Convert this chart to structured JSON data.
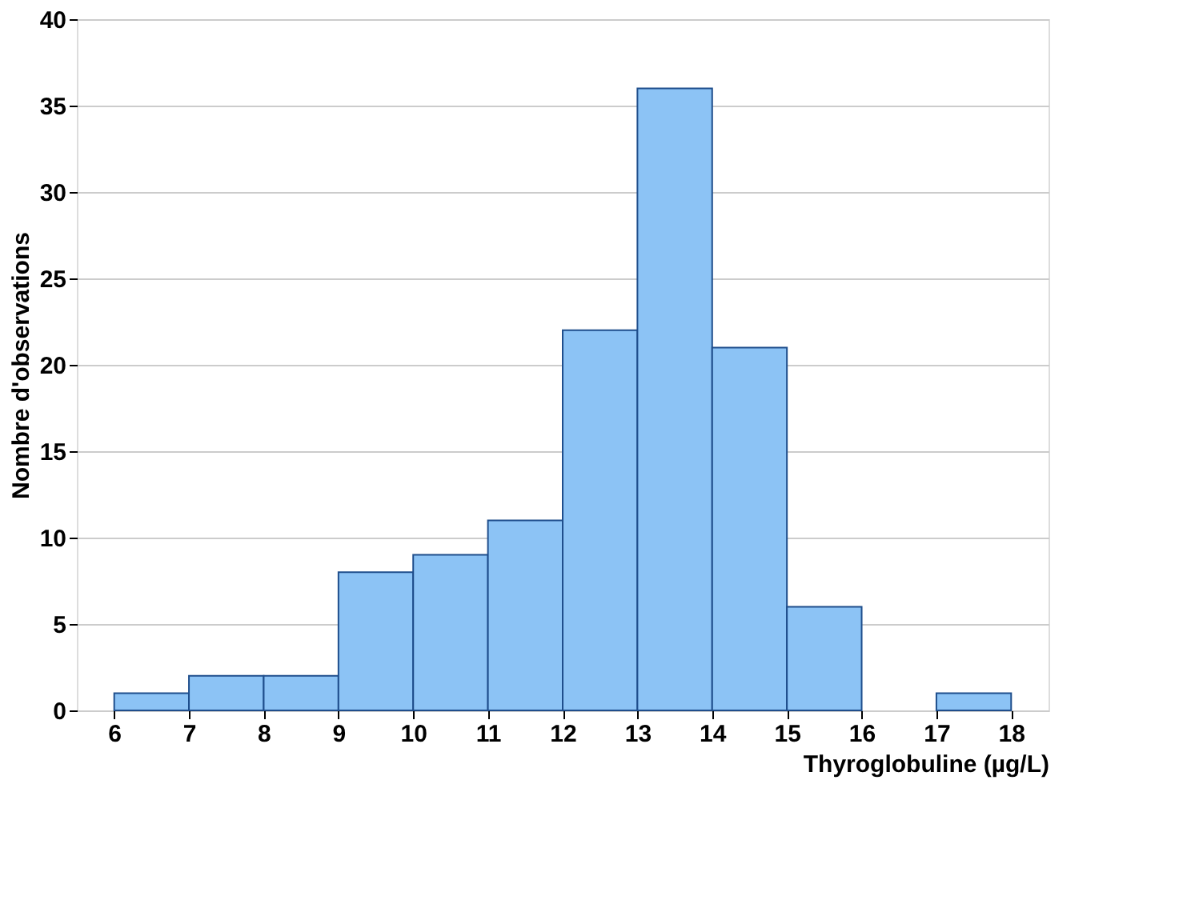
{
  "chart_data": {
    "type": "histogram",
    "xlabel": "Thyroglobuline (µg/L)",
    "ylabel": "Nombre d'observations",
    "bins": [
      6,
      7,
      8,
      9,
      10,
      11,
      12,
      13,
      14,
      15,
      16,
      17,
      18
    ],
    "values": [
      1,
      2,
      2,
      8,
      9,
      11,
      22,
      36,
      21,
      6,
      0,
      1
    ],
    "color": "#8cc3f5",
    "xlim": [
      5.5,
      18.5
    ],
    "xticks": [
      6,
      7,
      8,
      9,
      10,
      11,
      12,
      13,
      14,
      15,
      16,
      17,
      18
    ],
    "ylim": [
      0,
      40
    ],
    "yticks": [
      0,
      5,
      10,
      15,
      20,
      25,
      30,
      35,
      40
    ],
    "grid": "y"
  }
}
